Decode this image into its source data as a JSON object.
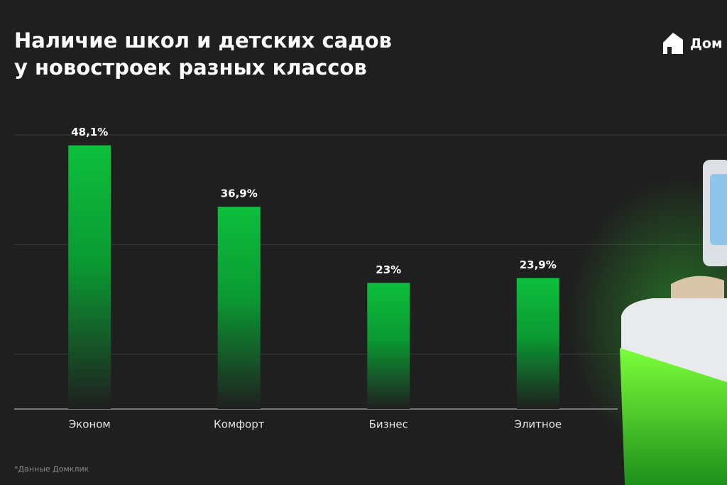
{
  "chart_data": {
    "type": "bar",
    "title": [
      "Наличие школ и детских садов",
      "у новостроек разных классов"
    ],
    "logo": "Дом",
    "categories": [
      "Эконом",
      "Комфорт",
      "Бизнес",
      "Элитное"
    ],
    "values": [
      48.1,
      36.9,
      23,
      23.9
    ],
    "value_labels": [
      "48,1%",
      "36,9%",
      "23%",
      "23,9%"
    ],
    "color": "#0dbf3c",
    "ylim": [
      0,
      50
    ],
    "yticks": [
      10,
      30,
      50
    ],
    "grid": true,
    "note": "*Данные Домклик"
  }
}
